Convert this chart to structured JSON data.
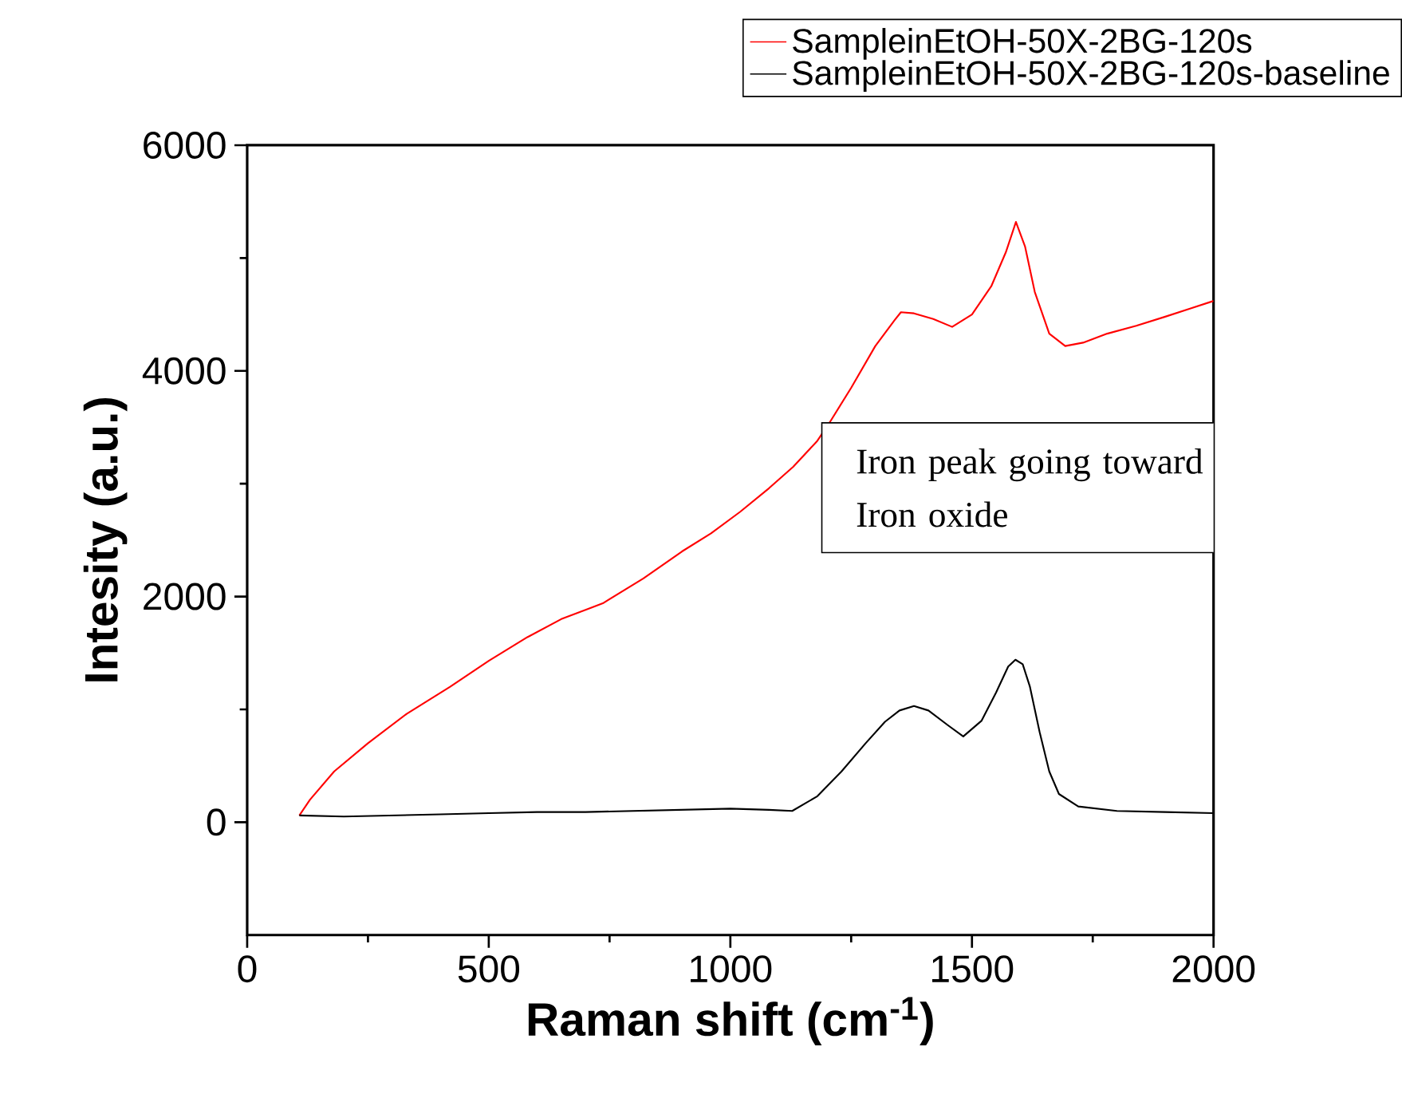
{
  "chart_data": {
    "type": "line",
    "xlabel": "Raman shift (cm$^{-1}$)",
    "ylabel": "Intesity (a.u.)",
    "xlim": [
      0,
      2000
    ],
    "ylim": [
      -1000,
      6000
    ],
    "xticks": [
      0,
      500,
      1000,
      1500,
      2000
    ],
    "yticks": [
      0,
      2000,
      4000,
      6000
    ],
    "legend": "top right",
    "annotations": [
      "Iron peak going toward Iron oxide"
    ],
    "series": [
      {
        "name": "SampleinEtOH-50X-2BG-120s",
        "color": "#ff0000",
        "x": [
          108,
          130,
          180,
          250,
          330,
          420,
          500,
          580,
          650,
          736,
          820,
          900,
          960,
          1020,
          1080,
          1130,
          1180,
          1208,
          1250,
          1300,
          1340,
          1353,
          1380,
          1420,
          1459,
          1500,
          1540,
          1570,
          1591,
          1610,
          1630,
          1660,
          1693,
          1730,
          1780,
          1840,
          1900,
          1950,
          2000
        ],
        "values": [
          60,
          200,
          450,
          700,
          960,
          1200,
          1430,
          1640,
          1800,
          1940,
          2160,
          2400,
          2560,
          2750,
          2960,
          3150,
          3380,
          3560,
          3850,
          4220,
          4450,
          4520,
          4510,
          4460,
          4390,
          4500,
          4750,
          5050,
          5320,
          5100,
          4700,
          4330,
          4220,
          4250,
          4330,
          4400,
          4480,
          4550,
          4620
        ]
      },
      {
        "name": "SampleinEtOH-50X-2BG-120s-baseline",
        "color": "#000000",
        "x": [
          108,
          200,
          300,
          400,
          500,
          600,
          700,
          800,
          900,
          1000,
          1080,
          1128,
          1180,
          1230,
          1280,
          1320,
          1350,
          1380,
          1410,
          1450,
          1482,
          1520,
          1550,
          1575,
          1590,
          1605,
          1620,
          1640,
          1660,
          1680,
          1720,
          1800,
          1900,
          2000
        ],
        "values": [
          60,
          50,
          60,
          70,
          80,
          90,
          90,
          100,
          110,
          120,
          110,
          100,
          230,
          450,
          700,
          890,
          990,
          1030,
          990,
          860,
          760,
          900,
          1150,
          1380,
          1440,
          1400,
          1200,
          800,
          450,
          250,
          140,
          100,
          90,
          80
        ]
      }
    ]
  }
}
